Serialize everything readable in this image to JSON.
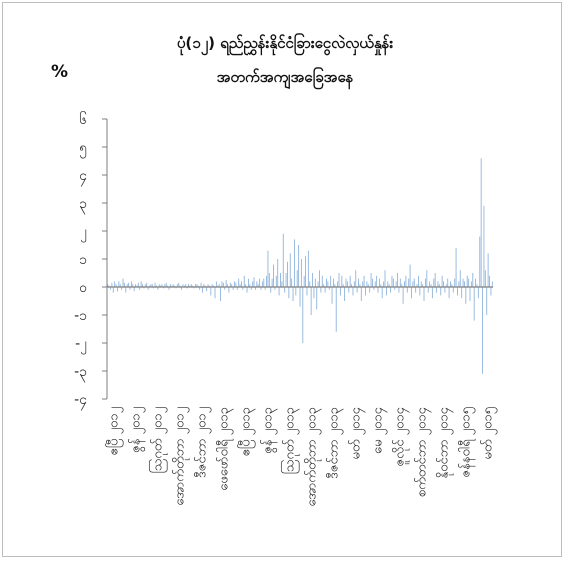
{
  "chart_data": {
    "type": "bar",
    "title_line1": "ပုံ(၁၂) ရည်ညွှန်းနိုင်ငံခြားငွေလဲလှယ်နှုန်း",
    "title_line2": "အတက်အကျအခြေအနေ",
    "unit_label": "%",
    "ylim": [
      -4,
      6
    ],
    "yticks": [
      {
        "value": 6,
        "label": "၆"
      },
      {
        "value": 5,
        "label": "၅"
      },
      {
        "value": 4,
        "label": "၄"
      },
      {
        "value": 3,
        "label": "၃"
      },
      {
        "value": 2,
        "label": "၂"
      },
      {
        "value": 1,
        "label": "၁"
      },
      {
        "value": 0,
        "label": "၀"
      },
      {
        "value": -1,
        "label": "-၁"
      },
      {
        "value": -2,
        "label": "-၂"
      },
      {
        "value": -3,
        "label": "-၃"
      },
      {
        "value": -4,
        "label": "-၄"
      }
    ],
    "xtick_labels": [
      "ဧပြီ ၂၀၁၂",
      "ဇွန် ၂၀၁၂",
      "သြဂုတ် ၂၀၁၂",
      "အောက်တိုဘာ ၂၀၁၂",
      "ဒီဇင်ဘာ ၂၀၁၂",
      "ဖေဖော်ဝါရီ ၂၀၁၃",
      "ဧပြီ ၂၀၁၃",
      "ဇွန် ၂၀၁၃",
      "သြဂုတ် ၂၀၁၃",
      "အောက်တိုဘာ ၂၀၁၃",
      "ဒီဇင်ဘာ ၂၀၁၃",
      "မတ် ၂၀၁၄",
      "မေ ၂၀၁၄",
      "ဇူလိုင် ၂၀၁၄",
      "စက်တင်ဘာ ၂၀၁၄",
      "နိုဝင်ဘာ ၂၀၁၄",
      "ဇန်နဝါရီ ၂၀၁၅",
      "မတ် ၂၀၁၅"
    ],
    "bar_color": "#8fb4dc",
    "axis_color": "#7f7f7f",
    "series": [
      {
        "values": [
          0.1,
          0.05,
          -0.1,
          0.15,
          -0.2,
          0.2,
          0.1,
          -0.15,
          0.2,
          0.1,
          -0.1,
          0.3,
          0.15,
          -0.2,
          0.1,
          0.15,
          -0.1,
          0.2,
          0.1,
          -0.15,
          0.1,
          0.05,
          0.15,
          -0.1,
          0.2,
          0.1,
          -0.05,
          0.1,
          0.15,
          -0.1,
          0.05,
          0.1,
          0.1,
          -0.05,
          0.15,
          0.05,
          -0.1,
          0.1,
          0.05,
          0.1,
          -0.05,
          0.1,
          0.15,
          0.05,
          -0.1,
          0.1,
          0.05,
          0.1,
          0.05,
          -0.05,
          0.1,
          0.15,
          0.05,
          -0.1,
          0.1,
          0.05,
          0.1,
          -0.05,
          0.1,
          0.05,
          0.1,
          0.05,
          -0.05,
          0.1,
          0.1,
          0.05,
          -0.1,
          0.15,
          -0.2,
          0.1,
          0.05,
          -0.15,
          0.1,
          0.05,
          -0.3,
          0.1,
          0.05,
          -0.4,
          0.2,
          0.05,
          0.1,
          -0.5,
          0.2,
          0.15,
          -0.1,
          0.25,
          0.1,
          -0.2,
          0.15,
          0.1,
          -0.1,
          0.2,
          0.15,
          -0.1,
          0.3,
          0.1,
          0.2,
          -0.1,
          0.4,
          0.1,
          -0.2,
          0.3,
          0.1,
          -0.1,
          0.2,
          0.35,
          -0.1,
          0.2,
          0.1,
          0.3,
          -0.1,
          0.2,
          0.3,
          -0.1,
          0.4,
          1.3,
          0.5,
          -0.2,
          0.3,
          0.8,
          -0.1,
          0.4,
          1.0,
          -0.3,
          0.5,
          0.2,
          1.9,
          -0.2,
          0.5,
          0.9,
          -0.4,
          1.2,
          0.3,
          -0.5,
          1.7,
          -0.3,
          0.6,
          1.5,
          -0.7,
          1.0,
          -2.0,
          0.4,
          1.1,
          -0.3,
          1.3,
          0.2,
          -1.0,
          0.5,
          -0.4,
          0.3,
          -0.8,
          0.2,
          0.6,
          -0.2,
          0.4,
          0.1,
          -0.2,
          0.3,
          0.2,
          -0.1,
          0.4,
          -0.6,
          0.3,
          0.1,
          -1.6,
          0.2,
          0.5,
          -0.3,
          0.4,
          0.1,
          -0.5,
          0.3,
          0.2,
          -0.2,
          0.4,
          0.1,
          -0.3,
          0.2,
          0.6,
          -0.2,
          0.3,
          0.1,
          -0.5,
          0.2,
          0.4,
          -0.3,
          0.2,
          0.1,
          -0.2,
          0.5,
          0.3,
          -0.1,
          0.2,
          0.4,
          -0.2,
          0.3,
          0.1,
          -0.4,
          0.2,
          0.6,
          -0.3,
          0.2,
          0.1,
          -0.2,
          0.4,
          0.3,
          -0.1,
          0.2,
          0.5,
          -0.2,
          0.3,
          0.1,
          -0.6,
          0.2,
          0.4,
          -0.2,
          0.3,
          0.8,
          -0.4,
          0.2,
          0.3,
          -0.2,
          0.1,
          0.4,
          -0.3,
          0.2,
          0.1,
          -0.5,
          0.3,
          0.6,
          -0.2,
          0.2,
          0.1,
          -0.4,
          0.3,
          0.5,
          -0.2,
          0.2,
          0.1,
          -0.3,
          0.4,
          0.2,
          -0.2,
          0.1,
          0.3,
          -0.4,
          0.2,
          0.1,
          -0.2,
          0.3,
          1.4,
          -0.3,
          0.2,
          0.6,
          -0.4,
          0.3,
          0.2,
          -0.6,
          0.4,
          0.3,
          -0.5,
          0.2,
          0.5,
          -1.2,
          0.3,
          0.1,
          -0.4,
          1.8,
          4.6,
          -3.1,
          2.9,
          0.6,
          -1.0,
          1.2,
          0.4,
          -0.3,
          0.2
        ]
      }
    ]
  }
}
